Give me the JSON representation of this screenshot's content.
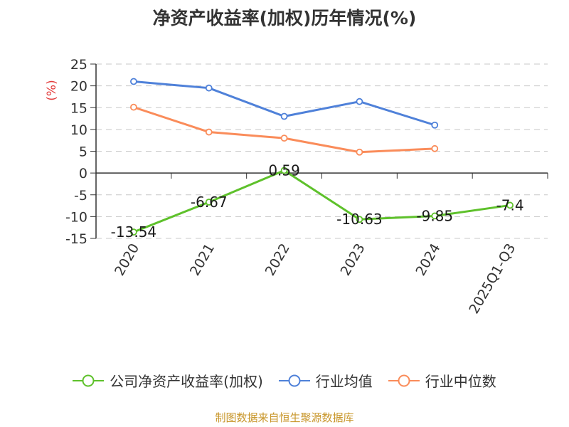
{
  "chart_data": {
    "type": "line",
    "title": "净资产收益率(加权)历年情况(%)",
    "ylabel": "(%)",
    "xlabel": "",
    "categories": [
      "2020",
      "2021",
      "2022",
      "2023",
      "2024",
      "2025Q1-Q3"
    ],
    "ylim": [
      -15,
      25
    ],
    "yticks": [
      25,
      20,
      15,
      10,
      5,
      0,
      -5,
      -10,
      -15
    ],
    "grid": true,
    "legend_position": "bottom",
    "series": [
      {
        "name": "公司净资产收益率(加权)",
        "color": "#5ec12b",
        "values": [
          -13.54,
          -6.67,
          0.59,
          -10.63,
          -9.85,
          -7.4
        ],
        "labels": [
          "-13.54",
          "-6.67",
          "0.59",
          "-10.63",
          "-9.85",
          "-7.4"
        ]
      },
      {
        "name": "行业均值",
        "color": "#4f81d9",
        "values": [
          21.0,
          19.5,
          13.0,
          16.4,
          11.0,
          null
        ]
      },
      {
        "name": "行业中位数",
        "color": "#fa8c5a",
        "values": [
          15.1,
          9.4,
          8.0,
          4.8,
          5.6,
          null
        ]
      }
    ]
  },
  "source_note": "制图数据来自恒生聚源数据库",
  "colors": {
    "ylabel": "#e23b3b",
    "source": "#c8962a",
    "grid": "#c8c8c8",
    "axis": "#333333"
  }
}
